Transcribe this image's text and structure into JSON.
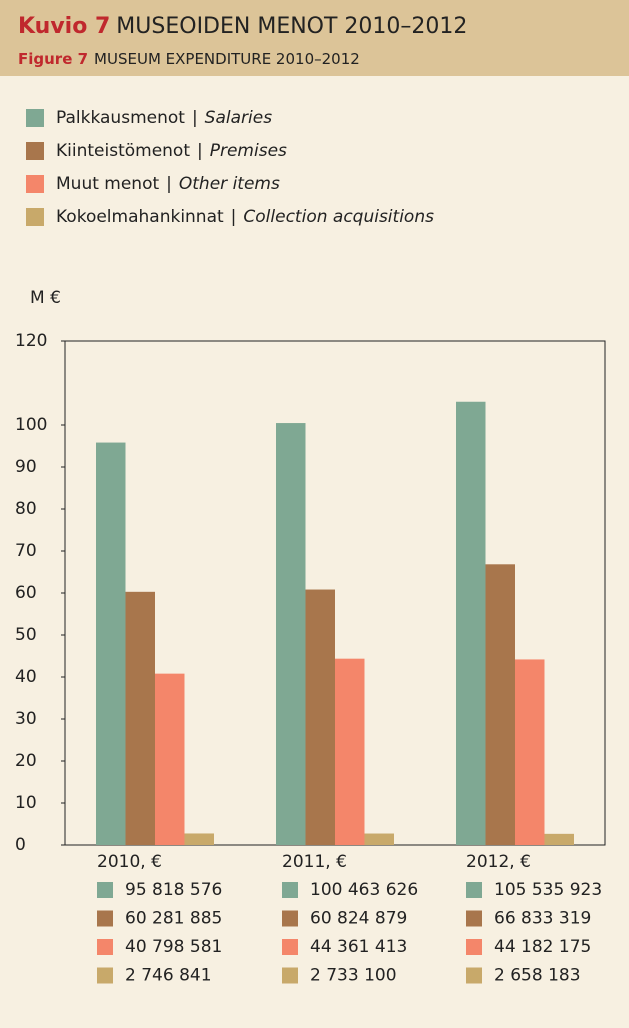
{
  "chart_data": {
    "type": "bar",
    "title_prefix": "Kuvio 7",
    "title": "MUSEOIDEN MENOT 2010–2012",
    "subtitle_prefix": "Figure 7",
    "subtitle": "MUSEUM EXPENDITURE 2010–2012",
    "y_label": "M €",
    "legend_separator": "|",
    "categories": [
      "2010, €",
      "2011, €",
      "2012, €"
    ],
    "series": [
      {
        "name": "Palkkausmenot",
        "name_en": "Salaries",
        "color": "#7fa893",
        "values": [
          95.818576,
          100.463626,
          105.535923
        ],
        "value_labels": [
          "95 818 576",
          "100 463 626",
          "105 535 923"
        ]
      },
      {
        "name": "Kiinteistömenot",
        "name_en": "Premises",
        "color": "#a8764c",
        "values": [
          60.281885,
          60.824879,
          66.833319
        ],
        "value_labels": [
          "60 281 885",
          "60 824 879",
          "66 833 319"
        ]
      },
      {
        "name": "Muut menot",
        "name_en": "Other items",
        "color": "#f4866a",
        "values": [
          40.798581,
          44.361413,
          44.182175
        ],
        "value_labels": [
          "40 798 581",
          "44 361 413",
          "44 182 175"
        ]
      },
      {
        "name": "Kokoelmahankinnat",
        "name_en": "Collection acquisitions",
        "color": "#c8a96a",
        "values": [
          2.746841,
          2.7331,
          2.658183
        ],
        "value_labels": [
          "2 746 841",
          "2 733 100",
          "2 658 183"
        ]
      }
    ],
    "ylim": [
      0,
      120
    ],
    "yticks": [
      0,
      10,
      20,
      30,
      40,
      50,
      60,
      70,
      80,
      90,
      100,
      120
    ]
  }
}
